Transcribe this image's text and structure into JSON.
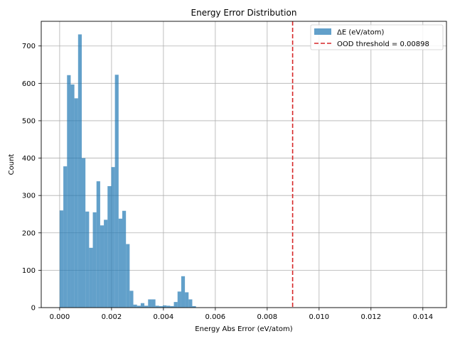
{
  "chart_data": {
    "type": "histogram",
    "title": "Energy Error Distribution",
    "xlabel": "Energy Abs Error (eV/atom)",
    "ylabel": "Count",
    "xlim": [
      -0.00071,
      0.01491
    ],
    "ylim": [
      0,
      766
    ],
    "xticks": [
      0.0,
      0.002,
      0.004,
      0.006,
      0.008,
      0.01,
      0.012,
      0.014
    ],
    "xtick_labels": [
      "0.000",
      "0.002",
      "0.004",
      "0.006",
      "0.008",
      "0.010",
      "0.012",
      "0.014"
    ],
    "yticks": [
      0,
      100,
      200,
      300,
      400,
      500,
      600,
      700
    ],
    "ytick_labels": [
      "0",
      "100",
      "200",
      "300",
      "400",
      "500",
      "600",
      "700"
    ],
    "grid": true,
    "legend_position": "top-right",
    "bin_start": 0.0,
    "bin_width": 0.000142,
    "colors": {
      "bars": "#1f77b4",
      "bar_opacity": 0.7,
      "threshold": "#d62728",
      "grid": "#b0b0b0"
    },
    "series": [
      {
        "name": "ΔE (eV/atom)",
        "values": [
          260,
          378,
          622,
          597,
          560,
          731,
          400,
          257,
          160,
          255,
          338,
          220,
          235,
          325,
          376,
          623,
          238,
          259,
          170,
          45,
          8,
          5,
          12,
          5,
          22,
          22,
          5,
          4,
          6,
          5,
          4,
          15,
          43,
          84,
          41,
          22,
          4,
          0,
          0,
          0,
          0,
          0,
          0,
          0,
          0,
          0,
          0,
          0,
          0,
          0,
          0,
          0,
          0,
          0,
          0,
          0,
          0,
          0,
          0,
          0,
          0,
          0,
          0,
          0,
          0,
          0,
          0,
          0,
          0,
          0,
          0,
          0,
          0,
          0,
          0,
          0,
          0,
          0,
          0,
          0,
          0,
          0,
          0,
          0,
          0,
          0,
          0,
          0,
          0,
          0,
          0,
          0,
          0,
          0,
          0,
          0,
          0,
          0,
          0,
          0
        ]
      }
    ],
    "threshold": {
      "label": "OOD threshold = 0.00898",
      "value": 0.00898
    }
  }
}
